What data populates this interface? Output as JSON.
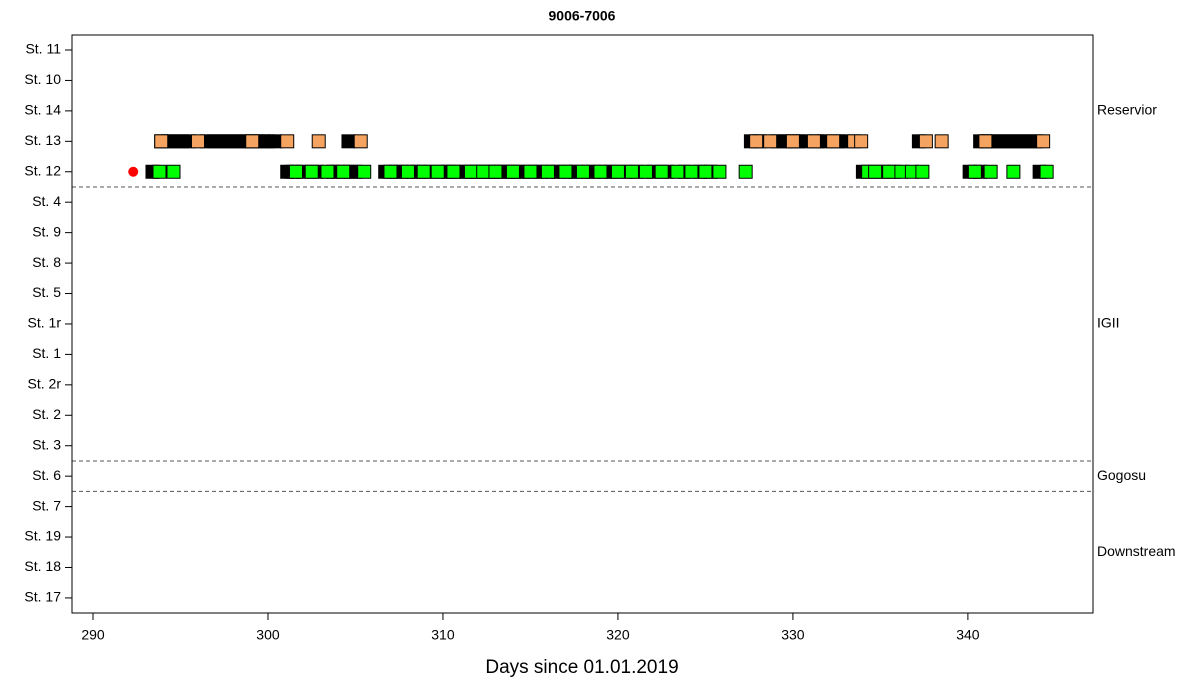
{
  "chart_data": {
    "type": "detections",
    "title": "9006-7006",
    "xlabel": "Days since 01.01.2019",
    "xlim": [
      288.8,
      347.15
    ],
    "xticks": [
      290,
      300,
      310,
      320,
      330,
      340
    ],
    "y_groups": [
      {
        "name": "Reservior",
        "categories": [
          "St. 11",
          "St. 10",
          "St. 14",
          "St. 13",
          "St. 12"
        ]
      },
      {
        "name": "IGII",
        "categories": [
          "St. 4",
          "St. 9",
          "St. 8",
          "St. 5",
          "St. 1r",
          "St. 1",
          "St. 2r",
          "St. 2",
          "St. 3"
        ]
      },
      {
        "name": "Gogosu",
        "categories": [
          "St. 6"
        ]
      },
      {
        "name": "Downstream",
        "categories": [
          "St. 7",
          "St. 19",
          "St. 18",
          "St. 17"
        ]
      }
    ],
    "release": {
      "category": "St. 12",
      "x": 292.3,
      "color": "#ff0000"
    },
    "series": [
      {
        "category": "St. 13",
        "color": "#000000",
        "x": [
          293.9,
          294.3,
          294.7,
          295.1,
          295.5,
          296.5,
          296.9,
          297.3,
          297.7,
          298.1,
          298.5,
          298.9,
          299.3,
          299.7,
          300.0,
          300.4,
          304.6,
          327.6,
          328.1,
          329.1,
          329.5,
          329.9,
          330.3,
          330.7,
          331.4,
          331.8,
          332.6,
          333.1,
          337.2,
          340.7,
          341.1,
          341.5,
          341.9,
          342.3,
          342.7,
          343.1,
          343.5,
          343.9
        ]
      },
      {
        "category": "St. 13",
        "color": "#f4a460",
        "x": [
          293.9,
          296.0,
          299.1,
          301.1,
          302.9,
          305.3,
          327.9,
          328.7,
          330.0,
          331.2,
          332.3,
          333.5,
          333.9,
          337.6,
          338.5,
          341.0,
          344.3
        ]
      },
      {
        "category": "St. 12",
        "color": "#000000",
        "x": [
          293.4,
          301.1,
          301.4,
          302.0,
          302.8,
          303.7,
          304.0,
          304.7,
          305.0,
          306.7,
          307.3,
          307.6,
          308.3,
          308.6,
          309.3,
          310.1,
          310.3,
          311.0,
          311.3,
          311.8,
          312.0,
          312.6,
          312.8,
          313.3,
          313.6,
          313.8,
          314.3,
          314.6,
          315.3,
          315.6,
          316.3,
          316.6,
          317.3,
          317.6,
          318.3,
          318.6,
          319.3,
          319.6,
          320.4,
          321.1,
          322.0,
          322.8,
          323.8,
          324.7,
          325.3,
          334.0,
          335.1,
          335.8,
          340.1,
          340.7,
          344.1
        ]
      },
      {
        "category": "St. 12",
        "color": "#00ff00",
        "x": [
          293.8,
          294.6,
          301.6,
          302.5,
          303.4,
          304.3,
          305.5,
          307.0,
          308.0,
          308.9,
          309.7,
          310.6,
          311.6,
          312.3,
          313.0,
          314.0,
          315.0,
          316.0,
          317.0,
          318.0,
          319.0,
          320.0,
          320.8,
          321.6,
          322.5,
          323.4,
          324.2,
          325.0,
          325.8,
          327.3,
          334.3,
          334.7,
          335.5,
          336.2,
          336.8,
          337.4,
          340.4,
          341.3,
          342.6,
          344.5
        ]
      }
    ]
  }
}
